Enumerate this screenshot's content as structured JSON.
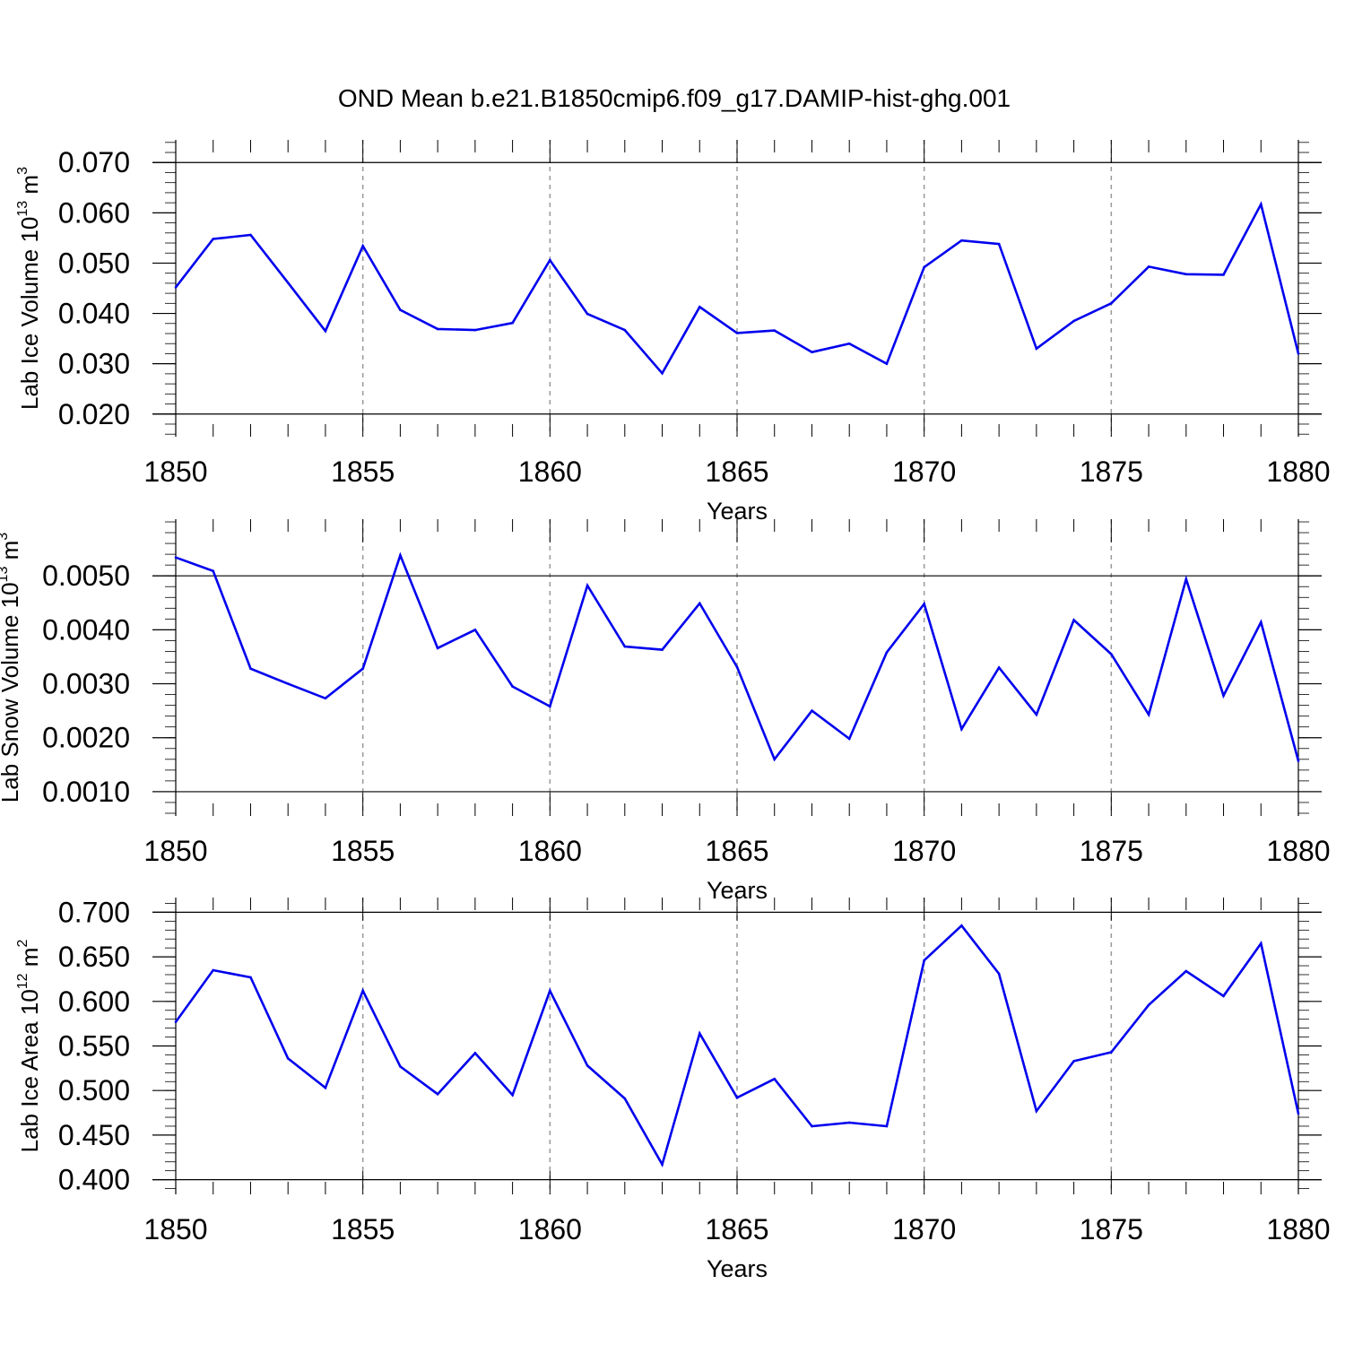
{
  "title": "OND Mean b.e21.B1850cmip6.f09_g17.DAMIP-hist-ghg.001",
  "line_color": "#0000ee",
  "grid_color": "#999999",
  "chart_data": [
    {
      "type": "line",
      "ylabel": "Lab Ice Volume 10",
      "ylabel_exp": "13",
      "ylabel_unit": " m",
      "ylabel_unit_exp": "3",
      "xlabel": "Years",
      "xlim": [
        1850,
        1880
      ],
      "ylim": [
        0.0155,
        0.0745
      ],
      "yticks": [
        0.02,
        0.03,
        0.04,
        0.05,
        0.06,
        0.07
      ],
      "ytick_labels": [
        "0.020",
        "0.030",
        "0.040",
        "0.050",
        "0.060",
        "0.070"
      ],
      "xticks": [
        1850,
        1855,
        1860,
        1865,
        1870,
        1875,
        1880
      ],
      "xtick_labels": [
        "1850",
        "1855",
        "1860",
        "1865",
        "1870",
        "1875",
        "1880"
      ],
      "grid_x": [
        1855,
        1860,
        1865,
        1870,
        1875
      ],
      "x": [
        1850,
        1851,
        1852,
        1853,
        1854,
        1855,
        1856,
        1857,
        1858,
        1859,
        1860,
        1861,
        1862,
        1863,
        1864,
        1865,
        1866,
        1867,
        1868,
        1869,
        1870,
        1871,
        1872,
        1873,
        1874,
        1875,
        1876,
        1877,
        1878,
        1879,
        1880
      ],
      "series": [
        {
          "name": "Lab Ice Volume",
          "values": [
            0.0452,
            0.0548,
            0.0556,
            0.0461,
            0.0365,
            0.0534,
            0.0407,
            0.0369,
            0.0367,
            0.0381,
            0.0506,
            0.0399,
            0.0367,
            0.0281,
            0.0413,
            0.0361,
            0.0366,
            0.0323,
            0.034,
            0.03,
            0.0492,
            0.0545,
            0.0538,
            0.033,
            0.0385,
            0.042,
            0.0493,
            0.0478,
            0.0477,
            0.0617,
            0.032
          ]
        }
      ]
    },
    {
      "type": "line",
      "ylabel": "Lab Snow Volume 10",
      "ylabel_exp": "13",
      "ylabel_unit": " m",
      "ylabel_unit_exp": "3",
      "xlabel": "Years",
      "xlim": [
        1850,
        1880
      ],
      "ylim": [
        0.00055,
        0.00605
      ],
      "yticks": [
        0.001,
        0.002,
        0.003,
        0.004,
        0.005
      ],
      "ytick_labels": [
        "0.0010",
        "0.0020",
        "0.0030",
        "0.0040",
        "0.0050"
      ],
      "xticks": [
        1850,
        1855,
        1860,
        1865,
        1870,
        1875,
        1880
      ],
      "xtick_labels": [
        "1850",
        "1855",
        "1860",
        "1865",
        "1870",
        "1875",
        "1880"
      ],
      "grid_x": [
        1855,
        1860,
        1865,
        1870,
        1875
      ],
      "x": [
        1850,
        1851,
        1852,
        1853,
        1854,
        1855,
        1856,
        1857,
        1858,
        1859,
        1860,
        1861,
        1862,
        1863,
        1864,
        1865,
        1866,
        1867,
        1868,
        1869,
        1870,
        1871,
        1872,
        1873,
        1874,
        1875,
        1876,
        1877,
        1878,
        1879,
        1880
      ],
      "series": [
        {
          "name": "Lab Snow Volume",
          "values": [
            0.00534,
            0.00509,
            0.00328,
            0.003,
            0.00273,
            0.00328,
            0.00538,
            0.00366,
            0.004,
            0.00295,
            0.00258,
            0.00482,
            0.00369,
            0.00363,
            0.00449,
            0.00331,
            0.0016,
            0.0025,
            0.00198,
            0.00358,
            0.00448,
            0.00216,
            0.0033,
            0.00243,
            0.00418,
            0.00355,
            0.00243,
            0.00494,
            0.00278,
            0.00414,
            0.00157
          ]
        }
      ]
    },
    {
      "type": "line",
      "ylabel": "Lab Ice Area 10",
      "ylabel_exp": "12",
      "ylabel_unit": " m",
      "ylabel_unit_exp": "2",
      "xlabel": "Years",
      "xlim": [
        1850,
        1880
      ],
      "ylim": [
        0.3835,
        0.7165
      ],
      "yticks": [
        0.4,
        0.45,
        0.5,
        0.55,
        0.6,
        0.65,
        0.7
      ],
      "ytick_labels": [
        "0.400",
        "0.450",
        "0.500",
        "0.550",
        "0.600",
        "0.650",
        "0.700"
      ],
      "xticks": [
        1850,
        1855,
        1860,
        1865,
        1870,
        1875,
        1880
      ],
      "xtick_labels": [
        "1850",
        "1855",
        "1860",
        "1865",
        "1870",
        "1875",
        "1880"
      ],
      "grid_x": [
        1855,
        1860,
        1865,
        1870,
        1875
      ],
      "x": [
        1850,
        1851,
        1852,
        1853,
        1854,
        1855,
        1856,
        1857,
        1858,
        1859,
        1860,
        1861,
        1862,
        1863,
        1864,
        1865,
        1866,
        1867,
        1868,
        1869,
        1870,
        1871,
        1872,
        1873,
        1874,
        1875,
        1876,
        1877,
        1878,
        1879,
        1880
      ],
      "series": [
        {
          "name": "Lab Ice Area",
          "values": [
            0.577,
            0.635,
            0.627,
            0.536,
            0.503,
            0.612,
            0.527,
            0.496,
            0.542,
            0.495,
            0.612,
            0.528,
            0.491,
            0.417,
            0.564,
            0.492,
            0.513,
            0.46,
            0.464,
            0.46,
            0.646,
            0.685,
            0.631,
            0.477,
            0.533,
            0.543,
            0.596,
            0.634,
            0.606,
            0.665,
            0.474
          ]
        }
      ]
    }
  ]
}
